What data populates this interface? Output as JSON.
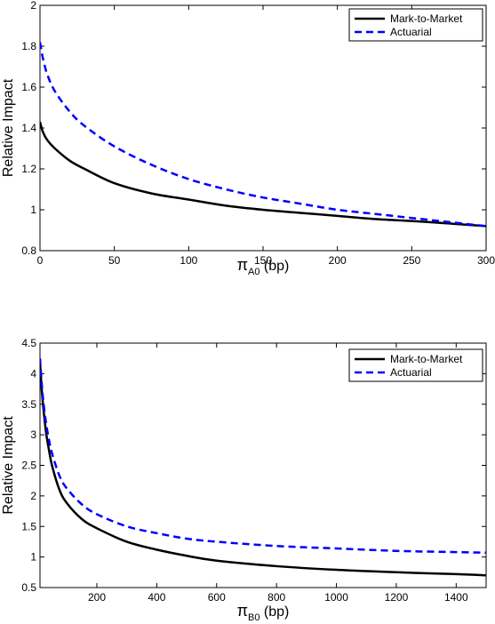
{
  "chart_data": [
    {
      "type": "line",
      "title": "",
      "xlabel": {
        "symbol": "π",
        "subscript": "A0",
        "suffix": " (bp)"
      },
      "ylabel": "Relative Impact",
      "xlim": [
        0,
        300
      ],
      "ylim": [
        0.8,
        2
      ],
      "xticks": [
        0,
        50,
        100,
        150,
        200,
        250,
        300
      ],
      "yticks": [
        0.8,
        1,
        1.2,
        1.4,
        1.6,
        1.8,
        2
      ],
      "ytick_labels": [
        "0.8",
        "1",
        "1.2",
        "1.4",
        "1.6",
        "1.8",
        "2"
      ],
      "grid": false,
      "legend_position": "top-right",
      "series": [
        {
          "name": "Mark-to-Market",
          "color": "#000000",
          "style": "solid",
          "x": [
            0,
            2,
            5,
            10,
            20,
            30,
            50,
            75,
            100,
            125,
            150,
            175,
            200,
            225,
            250,
            275,
            300
          ],
          "y": [
            1.43,
            1.38,
            1.34,
            1.3,
            1.24,
            1.2,
            1.13,
            1.08,
            1.05,
            1.02,
            1.0,
            0.985,
            0.97,
            0.955,
            0.945,
            0.933,
            0.92
          ]
        },
        {
          "name": "Actuarial",
          "color": "#0000ff",
          "style": "dashed",
          "x": [
            0,
            2,
            5,
            10,
            20,
            30,
            50,
            75,
            100,
            125,
            150,
            175,
            200,
            225,
            250,
            275,
            300
          ],
          "y": [
            1.82,
            1.74,
            1.66,
            1.58,
            1.48,
            1.41,
            1.31,
            1.22,
            1.15,
            1.1,
            1.06,
            1.03,
            1.0,
            0.98,
            0.96,
            0.94,
            0.92
          ]
        }
      ]
    },
    {
      "type": "line",
      "title": "",
      "xlabel": {
        "symbol": "π",
        "subscript": "B0",
        "suffix": " (bp)"
      },
      "ylabel": "Relative Impact",
      "xlim": [
        10,
        1500
      ],
      "ylim": [
        0.5,
        4.5
      ],
      "xticks": [
        200,
        400,
        600,
        800,
        1000,
        1200,
        1400
      ],
      "yticks": [
        0.5,
        1,
        1.5,
        2,
        2.5,
        3,
        3.5,
        4,
        4.5
      ],
      "ytick_labels": [
        "0.5",
        "1",
        "1.5",
        "2",
        "2.5",
        "3",
        "3.5",
        "4",
        "4.5"
      ],
      "grid": false,
      "legend_position": "top-right",
      "series": [
        {
          "name": "Mark-to-Market",
          "color": "#000000",
          "style": "solid",
          "x": [
            10,
            15,
            20,
            30,
            40,
            50,
            75,
            100,
            150,
            200,
            300,
            400,
            500,
            600,
            800,
            1000,
            1200,
            1400,
            1500
          ],
          "y": [
            4.2,
            3.8,
            3.5,
            3.05,
            2.75,
            2.5,
            2.1,
            1.88,
            1.62,
            1.47,
            1.25,
            1.12,
            1.02,
            0.94,
            0.85,
            0.79,
            0.75,
            0.72,
            0.7
          ]
        },
        {
          "name": "Actuarial",
          "color": "#0000ff",
          "style": "dashed",
          "x": [
            10,
            15,
            20,
            30,
            40,
            50,
            75,
            100,
            150,
            200,
            300,
            400,
            500,
            600,
            800,
            1000,
            1200,
            1400,
            1500
          ],
          "y": [
            4.25,
            3.9,
            3.6,
            3.2,
            2.92,
            2.7,
            2.33,
            2.12,
            1.86,
            1.7,
            1.5,
            1.39,
            1.3,
            1.25,
            1.18,
            1.14,
            1.1,
            1.08,
            1.07
          ]
        }
      ]
    }
  ]
}
